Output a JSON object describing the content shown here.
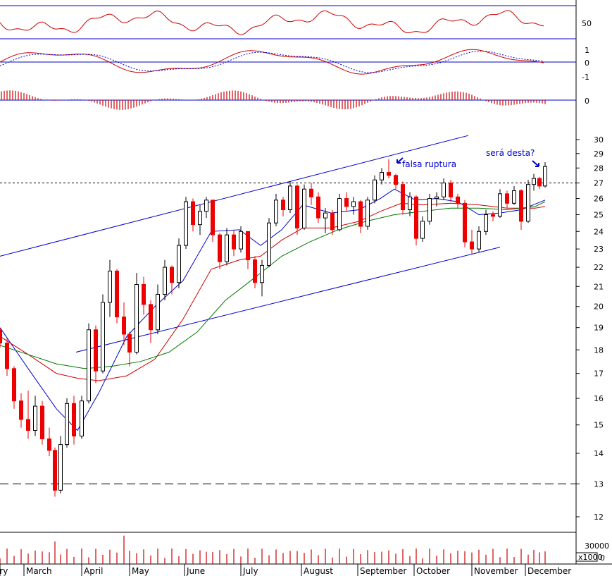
{
  "chart_data": {
    "type": "candlestick",
    "months": [
      "ary",
      "March",
      "April",
      "May",
      "June",
      "July",
      "August",
      "September",
      "October",
      "November",
      "December"
    ],
    "price_axis": {
      "scale": "log",
      "range": [
        11.5,
        31
      ],
      "ticks": [
        12,
        13,
        14,
        15,
        16,
        17,
        18,
        19,
        20,
        21,
        22,
        23,
        24,
        25,
        26,
        27,
        28,
        29,
        30
      ]
    },
    "reference_levels": {
      "dashed_support": 13,
      "dotted_resistance": 27
    },
    "trend_channel": {
      "upper": [
        [
          0,
          22.6
        ],
        [
          665,
          30.3
        ]
      ],
      "lower_guide": [
        [
          108,
          17.9
        ],
        [
          710,
          23.1
        ]
      ]
    },
    "annotations": [
      {
        "text": "falsa ruptura",
        "points_to": "September top near 28.6"
      },
      {
        "text": "será desta?",
        "points_to": "December close near 28.1"
      }
    ],
    "rsi_panel": {
      "tick": "50",
      "levels": [
        70,
        30
      ]
    },
    "macd_panel": {
      "ticks": [
        "1",
        "0",
        "-1"
      ]
    },
    "histogram_panel": {
      "tick": "0"
    },
    "volume_panel": {
      "tick": "30000",
      "multiplier_label": "x1000",
      "zero_label": "0"
    },
    "price_series": [
      {
        "x": 0,
        "o": 18.9,
        "h": 19.0,
        "l": 18.1,
        "c": 18.3
      },
      {
        "x": 10,
        "o": 18.3,
        "h": 18.5,
        "l": 16.9,
        "c": 17.2
      },
      {
        "x": 20,
        "o": 17.2,
        "h": 17.3,
        "l": 15.6,
        "c": 15.9
      },
      {
        "x": 30,
        "o": 15.9,
        "h": 16.2,
        "l": 14.9,
        "c": 15.2
      },
      {
        "x": 40,
        "o": 15.2,
        "h": 16.3,
        "l": 14.5,
        "c": 14.8
      },
      {
        "x": 50,
        "o": 14.8,
        "h": 16.1,
        "l": 14.6,
        "c": 15.7
      },
      {
        "x": 60,
        "o": 15.7,
        "h": 15.9,
        "l": 14.3,
        "c": 14.5
      },
      {
        "x": 70,
        "o": 14.5,
        "h": 14.9,
        "l": 13.9,
        "c": 14.1
      },
      {
        "x": 78,
        "o": 14.1,
        "h": 14.2,
        "l": 12.6,
        "c": 12.8
      },
      {
        "x": 86,
        "o": 12.8,
        "h": 14.6,
        "l": 12.7,
        "c": 14.3
      },
      {
        "x": 95,
        "o": 14.3,
        "h": 16.0,
        "l": 14.2,
        "c": 15.8
      },
      {
        "x": 105,
        "o": 15.8,
        "h": 16.1,
        "l": 14.3,
        "c": 14.6
      },
      {
        "x": 116,
        "o": 14.6,
        "h": 16.1,
        "l": 14.5,
        "c": 15.9
      },
      {
        "x": 126,
        "o": 15.9,
        "h": 19.2,
        "l": 15.8,
        "c": 18.9
      },
      {
        "x": 136,
        "o": 18.9,
        "h": 19.1,
        "l": 16.6,
        "c": 17.1
      },
      {
        "x": 146,
        "o": 17.1,
        "h": 20.6,
        "l": 17.0,
        "c": 20.2
      },
      {
        "x": 156,
        "o": 20.2,
        "h": 22.4,
        "l": 19.5,
        "c": 21.8
      },
      {
        "x": 166,
        "o": 21.8,
        "h": 21.9,
        "l": 19.2,
        "c": 19.5
      },
      {
        "x": 176,
        "o": 19.5,
        "h": 20.2,
        "l": 18.2,
        "c": 18.7
      },
      {
        "x": 184,
        "o": 18.7,
        "h": 18.8,
        "l": 17.3,
        "c": 17.9
      },
      {
        "x": 194,
        "o": 17.9,
        "h": 21.7,
        "l": 17.8,
        "c": 21.1
      },
      {
        "x": 204,
        "o": 21.1,
        "h": 21.5,
        "l": 19.6,
        "c": 20.1
      },
      {
        "x": 214,
        "o": 20.1,
        "h": 20.3,
        "l": 18.3,
        "c": 18.9
      },
      {
        "x": 224,
        "o": 18.9,
        "h": 21.1,
        "l": 18.7,
        "c": 20.6
      },
      {
        "x": 234,
        "o": 20.6,
        "h": 22.4,
        "l": 20.3,
        "c": 22.0
      },
      {
        "x": 244,
        "o": 22.0,
        "h": 22.1,
        "l": 20.6,
        "c": 21.2
      },
      {
        "x": 254,
        "o": 21.2,
        "h": 23.6,
        "l": 20.9,
        "c": 23.2
      },
      {
        "x": 264,
        "o": 23.2,
        "h": 26.1,
        "l": 23.0,
        "c": 25.8
      },
      {
        "x": 274,
        "o": 25.8,
        "h": 26.0,
        "l": 24.0,
        "c": 24.4
      },
      {
        "x": 284,
        "o": 24.4,
        "h": 25.6,
        "l": 23.8,
        "c": 25.2
      },
      {
        "x": 293,
        "o": 25.2,
        "h": 26.1,
        "l": 24.8,
        "c": 25.9
      },
      {
        "x": 302,
        "o": 25.9,
        "h": 25.9,
        "l": 23.4,
        "c": 23.8
      },
      {
        "x": 312,
        "o": 23.8,
        "h": 23.9,
        "l": 21.9,
        "c": 22.3
      },
      {
        "x": 322,
        "o": 22.3,
        "h": 24.2,
        "l": 22.1,
        "c": 23.8
      },
      {
        "x": 332,
        "o": 23.8,
        "h": 24.1,
        "l": 22.6,
        "c": 23.0
      },
      {
        "x": 342,
        "o": 23.0,
        "h": 24.3,
        "l": 22.8,
        "c": 24.0
      },
      {
        "x": 352,
        "o": 24.0,
        "h": 24.0,
        "l": 21.9,
        "c": 22.4
      },
      {
        "x": 362,
        "o": 22.4,
        "h": 22.6,
        "l": 20.9,
        "c": 21.2
      },
      {
        "x": 372,
        "o": 21.2,
        "h": 22.4,
        "l": 20.5,
        "c": 22.1
      },
      {
        "x": 382,
        "o": 22.1,
        "h": 24.8,
        "l": 22.0,
        "c": 24.5
      },
      {
        "x": 392,
        "o": 24.5,
        "h": 26.3,
        "l": 24.3,
        "c": 25.9
      },
      {
        "x": 402,
        "o": 25.9,
        "h": 26.1,
        "l": 24.9,
        "c": 25.3
      },
      {
        "x": 412,
        "o": 25.3,
        "h": 27.1,
        "l": 25.1,
        "c": 26.8
      },
      {
        "x": 422,
        "o": 26.8,
        "h": 26.9,
        "l": 23.8,
        "c": 24.2
      },
      {
        "x": 432,
        "o": 24.2,
        "h": 26.9,
        "l": 24.1,
        "c": 26.6
      },
      {
        "x": 442,
        "o": 26.6,
        "h": 27.0,
        "l": 25.6,
        "c": 26.1
      },
      {
        "x": 452,
        "o": 26.1,
        "h": 26.4,
        "l": 24.5,
        "c": 24.8
      },
      {
        "x": 462,
        "o": 24.8,
        "h": 25.4,
        "l": 23.9,
        "c": 25.1
      },
      {
        "x": 472,
        "o": 25.1,
        "h": 25.3,
        "l": 23.8,
        "c": 24.1
      },
      {
        "x": 482,
        "o": 24.1,
        "h": 26.3,
        "l": 24.0,
        "c": 26.0
      },
      {
        "x": 492,
        "o": 26.0,
        "h": 26.4,
        "l": 25.2,
        "c": 25.5
      },
      {
        "x": 502,
        "o": 25.5,
        "h": 26.1,
        "l": 25.0,
        "c": 25.8
      },
      {
        "x": 512,
        "o": 25.8,
        "h": 25.9,
        "l": 23.9,
        "c": 24.3
      },
      {
        "x": 522,
        "o": 24.3,
        "h": 26.1,
        "l": 24.1,
        "c": 25.9
      },
      {
        "x": 532,
        "o": 25.9,
        "h": 27.5,
        "l": 25.7,
        "c": 27.2
      },
      {
        "x": 542,
        "o": 27.2,
        "h": 28.0,
        "l": 26.9,
        "c": 27.7
      },
      {
        "x": 552,
        "o": 27.7,
        "h": 28.6,
        "l": 27.3,
        "c": 27.5
      },
      {
        "x": 562,
        "o": 27.5,
        "h": 27.6,
        "l": 26.6,
        "c": 26.9
      },
      {
        "x": 572,
        "o": 26.9,
        "h": 27.1,
        "l": 25.0,
        "c": 25.3
      },
      {
        "x": 582,
        "o": 25.3,
        "h": 26.4,
        "l": 24.9,
        "c": 26.1
      },
      {
        "x": 591,
        "o": 26.1,
        "h": 26.2,
        "l": 23.2,
        "c": 23.6
      },
      {
        "x": 600,
        "o": 23.6,
        "h": 24.9,
        "l": 23.4,
        "c": 24.6
      },
      {
        "x": 610,
        "o": 24.6,
        "h": 26.3,
        "l": 24.4,
        "c": 26.0
      },
      {
        "x": 620,
        "o": 26.0,
        "h": 26.4,
        "l": 25.5,
        "c": 26.1
      },
      {
        "x": 630,
        "o": 26.1,
        "h": 27.3,
        "l": 25.9,
        "c": 27.0
      },
      {
        "x": 640,
        "o": 27.0,
        "h": 27.2,
        "l": 25.8,
        "c": 26.1
      },
      {
        "x": 650,
        "o": 26.1,
        "h": 26.3,
        "l": 25.4,
        "c": 25.7
      },
      {
        "x": 660,
        "o": 25.7,
        "h": 25.9,
        "l": 23.1,
        "c": 23.4
      },
      {
        "x": 670,
        "o": 23.4,
        "h": 24.1,
        "l": 22.7,
        "c": 23.0
      },
      {
        "x": 680,
        "o": 23.0,
        "h": 24.3,
        "l": 22.8,
        "c": 24.0
      },
      {
        "x": 690,
        "o": 24.0,
        "h": 25.3,
        "l": 23.8,
        "c": 25.0
      },
      {
        "x": 700,
        "o": 25.0,
        "h": 25.2,
        "l": 24.6,
        "c": 24.9
      },
      {
        "x": 710,
        "o": 24.9,
        "h": 26.6,
        "l": 24.8,
        "c": 26.3
      },
      {
        "x": 720,
        "o": 26.3,
        "h": 26.5,
        "l": 25.4,
        "c": 25.7
      },
      {
        "x": 730,
        "o": 25.7,
        "h": 26.8,
        "l": 25.6,
        "c": 26.5
      },
      {
        "x": 740,
        "o": 26.5,
        "h": 26.6,
        "l": 24.1,
        "c": 24.6
      },
      {
        "x": 750,
        "o": 24.6,
        "h": 27.2,
        "l": 24.5,
        "c": 26.9
      },
      {
        "x": 758,
        "o": 26.9,
        "h": 27.6,
        "l": 26.5,
        "c": 27.3
      },
      {
        "x": 766,
        "o": 27.3,
        "h": 27.4,
        "l": 26.6,
        "c": 26.8
      },
      {
        "x": 774,
        "o": 26.8,
        "h": 28.4,
        "l": 26.7,
        "c": 28.1
      }
    ],
    "moving_averages": [
      {
        "color": "#0000cc",
        "points": [
          [
            0,
            19.0
          ],
          [
            40,
            17.2
          ],
          [
            80,
            15.6
          ],
          [
            110,
            14.8
          ],
          [
            140,
            16.2
          ],
          [
            180,
            18.6
          ],
          [
            220,
            20.0
          ],
          [
            260,
            21.3
          ],
          [
            300,
            24.0
          ],
          [
            340,
            24.1
          ],
          [
            370,
            23.2
          ],
          [
            400,
            24.1
          ],
          [
            430,
            25.6
          ],
          [
            470,
            25.1
          ],
          [
            510,
            25.3
          ],
          [
            540,
            26.0
          ],
          [
            560,
            26.6
          ],
          [
            590,
            25.9
          ],
          [
            620,
            26.0
          ],
          [
            650,
            25.8
          ],
          [
            680,
            25.0
          ],
          [
            710,
            25.1
          ],
          [
            740,
            25.3
          ],
          [
            774,
            25.9
          ]
        ]
      },
      {
        "color": "#cc0000",
        "points": [
          [
            0,
            18.6
          ],
          [
            40,
            17.8
          ],
          [
            80,
            17.0
          ],
          [
            110,
            16.8
          ],
          [
            140,
            16.7
          ],
          [
            180,
            16.9
          ],
          [
            220,
            17.6
          ],
          [
            260,
            19.4
          ],
          [
            300,
            21.9
          ],
          [
            340,
            22.4
          ],
          [
            370,
            22.6
          ],
          [
            400,
            23.5
          ],
          [
            430,
            24.2
          ],
          [
            470,
            24.2
          ],
          [
            510,
            24.6
          ],
          [
            540,
            25.2
          ],
          [
            570,
            25.7
          ],
          [
            600,
            25.6
          ],
          [
            640,
            25.7
          ],
          [
            680,
            25.6
          ],
          [
            720,
            25.4
          ],
          [
            760,
            25.4
          ],
          [
            774,
            25.5
          ]
        ]
      },
      {
        "color": "#007700",
        "points": [
          [
            0,
            18.2
          ],
          [
            40,
            17.8
          ],
          [
            80,
            17.4
          ],
          [
            120,
            17.2
          ],
          [
            160,
            17.3
          ],
          [
            200,
            17.5
          ],
          [
            240,
            17.9
          ],
          [
            280,
            18.8
          ],
          [
            320,
            20.3
          ],
          [
            360,
            21.4
          ],
          [
            400,
            22.6
          ],
          [
            440,
            23.4
          ],
          [
            480,
            24.1
          ],
          [
            520,
            24.6
          ],
          [
            560,
            25.0
          ],
          [
            600,
            25.2
          ],
          [
            640,
            25.4
          ],
          [
            680,
            25.4
          ],
          [
            720,
            25.3
          ],
          [
            760,
            25.5
          ],
          [
            774,
            25.8
          ]
        ]
      }
    ]
  },
  "labels": {
    "annotation_1": "falsa ruptura",
    "annotation_2": "será desta?"
  }
}
